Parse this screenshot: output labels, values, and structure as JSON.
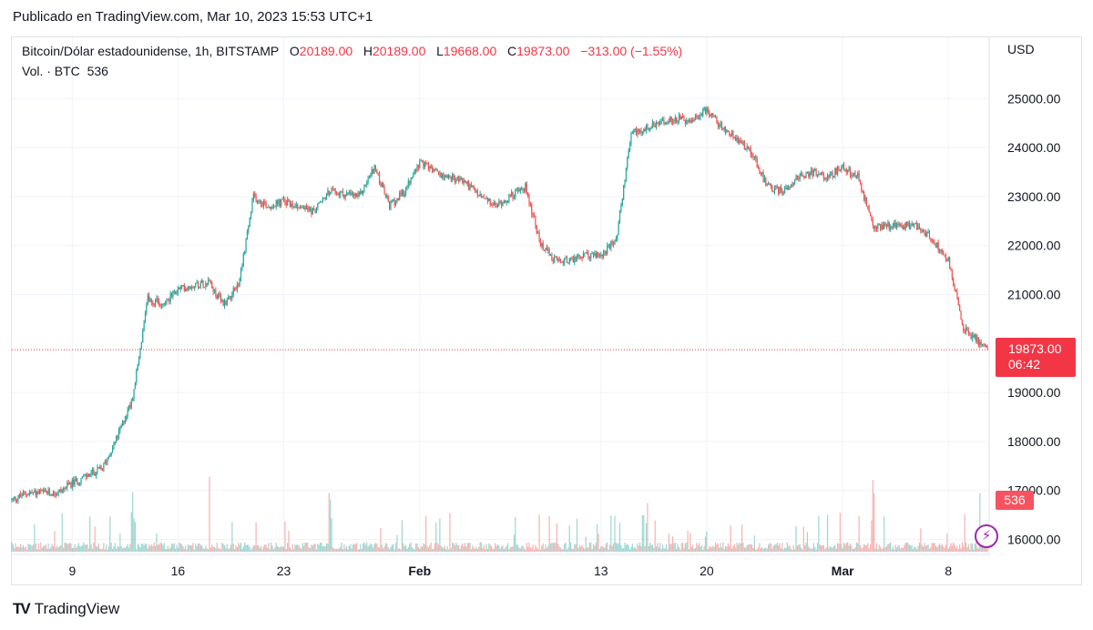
{
  "published": "Publicado en TradingView.com, Mar 10, 2023 15:53 UTC+1",
  "brand": "TradingView",
  "legend": {
    "symbol": "Bitcoin/Dólar estadounidense, 1h, BITSTAMP",
    "o_label": "O",
    "o_value": "20189.00",
    "h_label": "H",
    "h_value": "20189.00",
    "l_label": "L",
    "l_value": "19668.00",
    "c_label": "C",
    "c_value": "19873.00",
    "change": "−313.00 (−1.55%)",
    "vol_label": "Vol. · BTC",
    "vol_value": "536"
  },
  "current_price": {
    "price": "19873.00",
    "countdown": "06:42",
    "volume": "536"
  },
  "colors": {
    "up": "#26a69a",
    "down": "#ef5350",
    "badge": "#f23645",
    "alert": "#9c27b0"
  },
  "icons": {
    "alert": "lightning-bolt-icon",
    "logo": "tradingview-logo-icon"
  },
  "chart_data": {
    "type": "candlestick",
    "title": "Bitcoin/Dólar estadounidense, 1h, BITSTAMP",
    "currency": "USD",
    "ylim": [
      15800,
      25500
    ],
    "y_ticks": [
      "16000.00",
      "17000.00",
      "18000.00",
      "19000.00",
      "21000.00",
      "22000.00",
      "23000.00",
      "24000.00",
      "25000.00"
    ],
    "x_range": [
      "2023-01-05",
      "2023-03-10"
    ],
    "x_ticks": [
      {
        "label": "9",
        "date": "2023-01-09",
        "bold": false
      },
      {
        "label": "16",
        "date": "2023-01-16",
        "bold": false
      },
      {
        "label": "23",
        "date": "2023-01-23",
        "bold": false
      },
      {
        "label": "Feb",
        "date": "2023-02-01",
        "bold": true
      },
      {
        "label": "13",
        "date": "2023-02-13",
        "bold": false
      },
      {
        "label": "20",
        "date": "2023-02-20",
        "bold": false
      },
      {
        "label": "Mar",
        "date": "2023-03-01",
        "bold": true
      },
      {
        "label": "8",
        "date": "2023-03-08",
        "bold": false
      }
    ],
    "grid": true,
    "price_path": [
      [
        "2023-01-05",
        16800
      ],
      [
        "2023-01-06",
        16950
      ],
      [
        "2023-01-07",
        16950
      ],
      [
        "2023-01-08",
        16950
      ],
      [
        "2023-01-09",
        17150
      ],
      [
        "2023-01-10",
        17300
      ],
      [
        "2023-01-11",
        17450
      ],
      [
        "2023-01-12",
        18100
      ],
      [
        "2023-01-13",
        18900
      ],
      [
        "2023-01-14",
        20900
      ],
      [
        "2023-01-15",
        20800
      ],
      [
        "2023-01-16",
        21100
      ],
      [
        "2023-01-17",
        21200
      ],
      [
        "2023-01-18",
        21250
      ],
      [
        "2023-01-19",
        20800
      ],
      [
        "2023-01-20",
        21200
      ],
      [
        "2023-01-21",
        23000
      ],
      [
        "2023-01-22",
        22800
      ],
      [
        "2023-01-23",
        22900
      ],
      [
        "2023-01-24",
        22800
      ],
      [
        "2023-01-25",
        22700
      ],
      [
        "2023-01-26",
        23100
      ],
      [
        "2023-01-27",
        23050
      ],
      [
        "2023-01-28",
        23000
      ],
      [
        "2023-01-29",
        23600
      ],
      [
        "2023-01-30",
        22800
      ],
      [
        "2023-01-31",
        23100
      ],
      [
        "2023-02-01",
        23700
      ],
      [
        "2023-02-02",
        23500
      ],
      [
        "2023-02-03",
        23400
      ],
      [
        "2023-02-04",
        23300
      ],
      [
        "2023-02-05",
        23000
      ],
      [
        "2023-02-06",
        22800
      ],
      [
        "2023-02-07",
        23000
      ],
      [
        "2023-02-08",
        23200
      ],
      [
        "2023-02-09",
        22000
      ],
      [
        "2023-02-10",
        21700
      ],
      [
        "2023-02-11",
        21700
      ],
      [
        "2023-02-12",
        21800
      ],
      [
        "2023-02-13",
        21800
      ],
      [
        "2023-02-14",
        22100
      ],
      [
        "2023-02-15",
        24300
      ],
      [
        "2023-02-16",
        24400
      ],
      [
        "2023-02-17",
        24500
      ],
      [
        "2023-02-18",
        24600
      ],
      [
        "2023-02-19",
        24500
      ],
      [
        "2023-02-20",
        24800
      ],
      [
        "2023-02-21",
        24400
      ],
      [
        "2023-02-22",
        24200
      ],
      [
        "2023-02-23",
        23900
      ],
      [
        "2023-02-24",
        23200
      ],
      [
        "2023-02-25",
        23100
      ],
      [
        "2023-02-26",
        23400
      ],
      [
        "2023-02-27",
        23500
      ],
      [
        "2023-02-28",
        23400
      ],
      [
        "2023-03-01",
        23600
      ],
      [
        "2023-03-02",
        23400
      ],
      [
        "2023-03-03",
        22400
      ],
      [
        "2023-03-04",
        22400
      ],
      [
        "2023-03-05",
        22400
      ],
      [
        "2023-03-06",
        22400
      ],
      [
        "2023-03-07",
        22100
      ],
      [
        "2023-03-08",
        21700
      ],
      [
        "2023-03-09",
        20300
      ],
      [
        "2023-03-10",
        19873
      ]
    ],
    "volume_spikes": [
      [
        "2023-01-13",
        1600
      ],
      [
        "2023-01-14",
        1700
      ],
      [
        "2023-01-18",
        1650
      ],
      [
        "2023-01-23",
        1200
      ],
      [
        "2023-01-26",
        1250
      ],
      [
        "2023-02-01",
        1500
      ],
      [
        "2023-02-09",
        1700
      ],
      [
        "2023-02-14",
        1100
      ],
      [
        "2023-02-16",
        1200
      ],
      [
        "2023-02-20",
        1000
      ],
      [
        "2023-03-03",
        1700
      ],
      [
        "2023-03-09",
        1300
      ],
      [
        "2023-03-10",
        1350
      ]
    ],
    "last_price": 19873
  }
}
